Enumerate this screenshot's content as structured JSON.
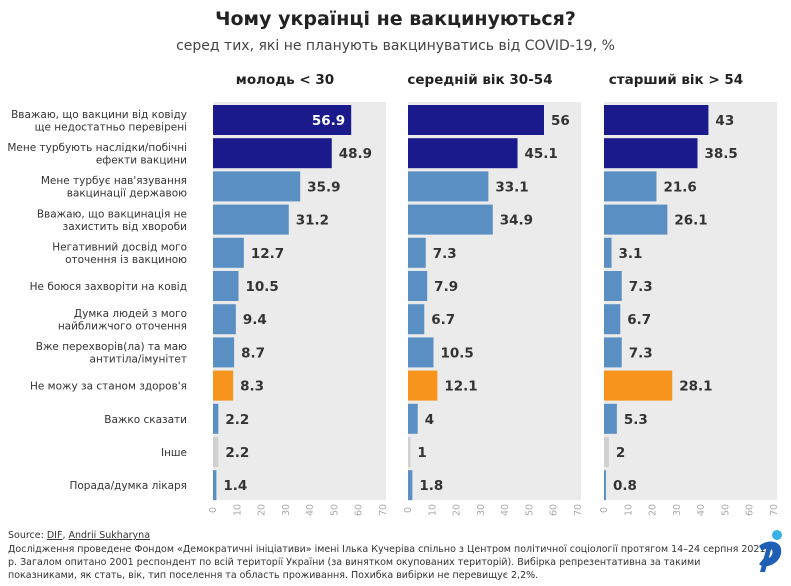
{
  "title": "Чому українці не вакцинуються?",
  "subtitle": "серед тих, які не планують вакцинуватись від COVID-19, %",
  "chart_data": {
    "type": "bar",
    "orientation": "horizontal",
    "categories": [
      [
        "Вважаю, що вакцини від ковіду",
        "ще недостатньо перевірені"
      ],
      [
        "Мене турбують наслідки/побічні",
        "ефекти вакцини"
      ],
      [
        "Мене турбує нав'язування",
        "вакцинації державою"
      ],
      [
        "Вважаю, що вакцинація не",
        "захистить від хвороби"
      ],
      [
        "Негативний досвід мого",
        "оточення із вакциною"
      ],
      [
        "Не боюся захворіти на ковід"
      ],
      [
        "Думка людей з мого",
        "найближчого оточення"
      ],
      [
        "Вже перехворів(ла) та маю",
        "антитіла/імунітет"
      ],
      [
        "Не можу за станом здоров'я"
      ],
      [
        "Важко сказати"
      ],
      [
        "Інше"
      ],
      [
        "Порада/думка лікаря"
      ]
    ],
    "category_colors": [
      "#1a1a8c",
      "#1a1a8c",
      "#5a8fc4",
      "#5a8fc4",
      "#5a8fc4",
      "#5a8fc4",
      "#5a8fc4",
      "#5a8fc4",
      "#f7941d",
      "#5a8fc4",
      "#d0d0d0",
      "#5a8fc4"
    ],
    "series": [
      {
        "name": "молодь < 30",
        "values": [
          56.9,
          48.9,
          35.9,
          31.2,
          12.7,
          10.5,
          9.4,
          8.7,
          8.3,
          2.2,
          2.2,
          1.4
        ]
      },
      {
        "name": "середній вік 30-54",
        "values": [
          56,
          45.1,
          33.1,
          34.9,
          7.3,
          7.9,
          6.7,
          10.5,
          12.1,
          4,
          1,
          1.8
        ]
      },
      {
        "name": "старший вік > 54",
        "values": [
          43,
          38.5,
          21.6,
          26.1,
          3.1,
          7.3,
          6.7,
          7.3,
          28.1,
          5.3,
          2,
          0.8
        ]
      }
    ],
    "xlim": [
      0,
      70
    ],
    "xticks": [
      "0",
      "10",
      "20",
      "30",
      "40",
      "50",
      "60",
      "70"
    ],
    "value_labels": [
      [
        "56.9",
        "48.9",
        "35.9",
        "31.2",
        "12.7",
        "10.5",
        "9.4",
        "8.7",
        "8.3",
        "2.2",
        "2.2",
        "1.4"
      ],
      [
        "56",
        "45.1",
        "33.1",
        "34.9",
        "7.3",
        "7.9",
        "6.7",
        "10.5",
        "12.1",
        "4",
        "1",
        "1.8"
      ],
      [
        "43",
        "38.5",
        "21.6",
        "26.1",
        "3.1",
        "7.3",
        "6.7",
        "7.3",
        "28.1",
        "5.3",
        "2",
        "0.8"
      ]
    ],
    "grid": false
  },
  "footer": {
    "source_label": "Source: ",
    "source_links": [
      "DIF",
      "Andrii Sukharyna"
    ],
    "source_sep": ", ",
    "lines": [
      "Дослідження проведене Фондом «Демократичні ініціативи» імені Ілька Кучеріва спільно з Центром політичної соціології протягом 14–24 серпня 2021",
      "р. Загалом опитано 2001 респондент по всій території України (за винятком окупованих територій). Вибірка репрезентативна за такими",
      "показниками, як стать, вік, тип поселення та область проживання. Похибка вибірки не перевищує 2,2%."
    ]
  },
  "colors": {
    "panel_bg": "#ebebeb",
    "axis_text": "#aaaaaa",
    "logo_blue": "#1f5fb5",
    "logo_dot": "#3ab0e2"
  },
  "logo": {
    "icon": "dif-logo-icon"
  }
}
